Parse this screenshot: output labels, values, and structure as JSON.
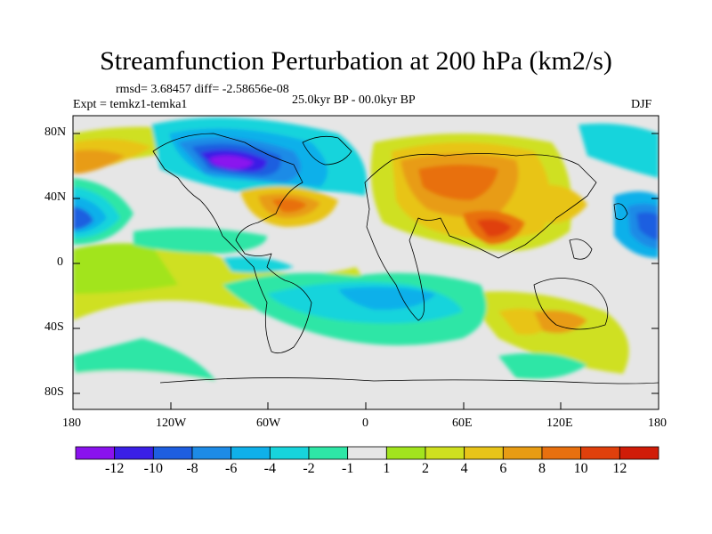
{
  "title": "Streamfunction Perturbation at 200 hPa (km2/s)",
  "stats": "rmsd= 3.68457 diff= -2.58656e-08",
  "experiment": "Expt = temkz1-temka1",
  "period": "25.0kyr BP - 00.0kyr BP",
  "season": "DJF",
  "lat_labels": [
    "80N",
    "40N",
    "0",
    "40S",
    "80S"
  ],
  "lon_labels": [
    "180",
    "120W",
    "60W",
    "0",
    "60E",
    "120E",
    "180"
  ],
  "colorbar": {
    "labels": [
      "-12",
      "-10",
      "-8",
      "-6",
      "-4",
      "-2",
      "-1",
      "1",
      "2",
      "4",
      "6",
      "8",
      "10",
      "12"
    ],
    "colors": [
      "#8a12ee",
      "#3a1fe6",
      "#1e5ee0",
      "#1d8be6",
      "#0fb0ea",
      "#17d4dc",
      "#2ee6a6",
      "#e6e6e6",
      "#a2e41e",
      "#cfe020",
      "#e8c419",
      "#e89c14",
      "#e8700f",
      "#e0400c",
      "#d01c08"
    ]
  },
  "features": [
    {
      "name": "negative-anomaly-north-america",
      "value": -12
    },
    {
      "name": "negative-anomaly-north-pacific",
      "value": -10
    },
    {
      "name": "negative-anomaly-west-pacific",
      "value": -8
    },
    {
      "name": "positive-anomaly-eurasia",
      "value": 8
    },
    {
      "name": "positive-anomaly-south-asia",
      "value": 12
    },
    {
      "name": "positive-anomaly-north-atlantic",
      "value": 6
    }
  ]
}
